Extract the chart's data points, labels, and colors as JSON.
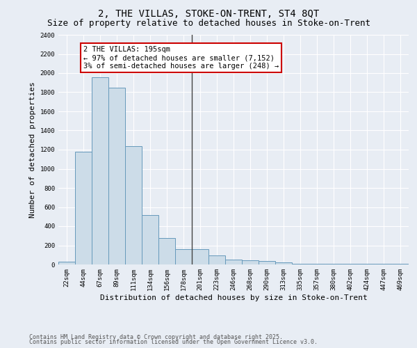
{
  "title": "2, THE VILLAS, STOKE-ON-TRENT, ST4 8QT",
  "subtitle": "Size of property relative to detached houses in Stoke-on-Trent",
  "xlabel": "Distribution of detached houses by size in Stoke-on-Trent",
  "ylabel": "Number of detached properties",
  "categories": [
    "22sqm",
    "44sqm",
    "67sqm",
    "89sqm",
    "111sqm",
    "134sqm",
    "156sqm",
    "178sqm",
    "201sqm",
    "223sqm",
    "246sqm",
    "268sqm",
    "290sqm",
    "313sqm",
    "335sqm",
    "357sqm",
    "380sqm",
    "402sqm",
    "424sqm",
    "447sqm",
    "469sqm"
  ],
  "values": [
    30,
    1175,
    1960,
    1850,
    1240,
    520,
    275,
    160,
    160,
    95,
    50,
    45,
    40,
    25,
    10,
    10,
    5,
    5,
    5,
    10,
    5
  ],
  "bar_color": "#ccdce8",
  "bar_edge_color": "#6699bb",
  "vline_index": 8,
  "vline_color": "#444444",
  "annotation_title": "2 THE VILLAS: 195sqm",
  "annotation_line1": "← 97% of detached houses are smaller (7,152)",
  "annotation_line2": "3% of semi-detached houses are larger (248) →",
  "annotation_box_facecolor": "#ffffff",
  "annotation_box_edgecolor": "#cc0000",
  "ylim": [
    0,
    2400
  ],
  "yticks": [
    0,
    200,
    400,
    600,
    800,
    1000,
    1200,
    1400,
    1600,
    1800,
    2000,
    2200,
    2400
  ],
  "background_color": "#e8edf4",
  "grid_color": "#ffffff",
  "footnote1": "Contains HM Land Registry data © Crown copyright and database right 2025.",
  "footnote2": "Contains public sector information licensed under the Open Government Licence v3.0.",
  "title_fontsize": 10,
  "subtitle_fontsize": 9,
  "label_fontsize": 8,
  "tick_fontsize": 6.5,
  "annotation_fontsize": 7.5,
  "footnote_fontsize": 6
}
